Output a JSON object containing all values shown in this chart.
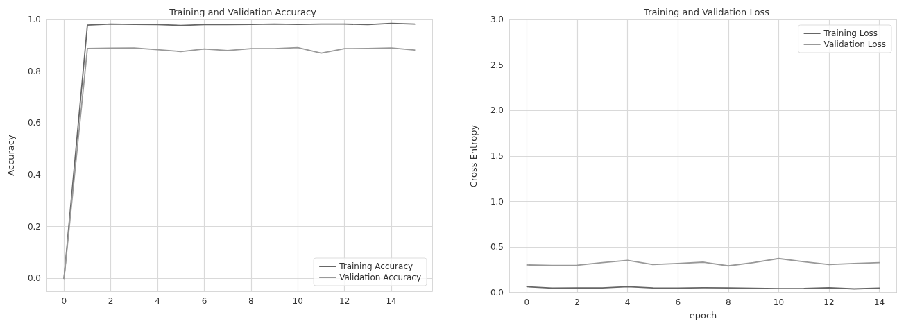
{
  "chart_data": [
    {
      "type": "line",
      "title": "Training and Validation Accuracy",
      "ylabel": "Accuracy",
      "x": [
        0,
        1,
        2,
        3,
        4,
        5,
        6,
        7,
        8,
        9,
        10,
        11,
        12,
        13,
        14,
        15
      ],
      "xlim": [
        -0.75,
        15.75
      ],
      "xticks": [
        0,
        2,
        4,
        6,
        8,
        10,
        12,
        14
      ],
      "ylim": [
        -0.05,
        1.0
      ],
      "yticks": [
        {
          "value": 0,
          "label": "0.0"
        },
        {
          "value": 0.2,
          "label": "0.2"
        },
        {
          "value": 0.4,
          "label": "0.4"
        },
        {
          "value": 0.6,
          "label": "0.6"
        },
        {
          "value": 0.8,
          "label": "0.8"
        },
        {
          "value": 1,
          "label": "1.0"
        }
      ],
      "grid": true,
      "legend": "bottom right",
      "series": [
        {
          "name": "Training Accuracy",
          "color": "#666666",
          "values": [
            0,
            0.978,
            0.982,
            0.981,
            0.98,
            0.977,
            0.98,
            0.98,
            0.981,
            0.982,
            0.981,
            0.982,
            0.982,
            0.98,
            0.985,
            0.982
          ]
        },
        {
          "name": "Validation Accuracy",
          "color": "#999999",
          "values": [
            0,
            0.888,
            0.889,
            0.89,
            0.883,
            0.876,
            0.886,
            0.88,
            0.887,
            0.887,
            0.891,
            0.87,
            0.887,
            0.888,
            0.89,
            0.882
          ]
        }
      ]
    },
    {
      "type": "line",
      "title": "Training and Validation Loss",
      "xlabel": "epoch",
      "ylabel": "Cross Entropy",
      "x": [
        0,
        1,
        2,
        3,
        4,
        5,
        6,
        7,
        8,
        9,
        10,
        11,
        12,
        13,
        14
      ],
      "xlim": [
        -0.7,
        14.7
      ],
      "xticks": [
        0,
        2,
        4,
        6,
        8,
        10,
        12,
        14
      ],
      "ylim": [
        0,
        3.0
      ],
      "yticks": [
        {
          "value": 0,
          "label": "0.0"
        },
        {
          "value": 0.5,
          "label": "0.5"
        },
        {
          "value": 1,
          "label": "1.0"
        },
        {
          "value": 1.5,
          "label": "1.5"
        },
        {
          "value": 2,
          "label": "2.0"
        },
        {
          "value": 2.5,
          "label": "2.5"
        },
        {
          "value": 3,
          "label": "3.0"
        }
      ],
      "grid": true,
      "legend": "top right",
      "series": [
        {
          "name": "Training Loss",
          "color": "#666666",
          "values": [
            0.065,
            0.05,
            0.052,
            0.052,
            0.065,
            0.052,
            0.05,
            0.055,
            0.052,
            0.048,
            0.045,
            0.046,
            0.055,
            0.042,
            0.05
          ]
        },
        {
          "name": "Validation Loss",
          "color": "#999999",
          "values": [
            0.305,
            0.3,
            0.302,
            0.33,
            0.355,
            0.31,
            0.32,
            0.335,
            0.295,
            0.33,
            0.375,
            0.34,
            0.31,
            0.32,
            0.33
          ]
        }
      ]
    }
  ]
}
